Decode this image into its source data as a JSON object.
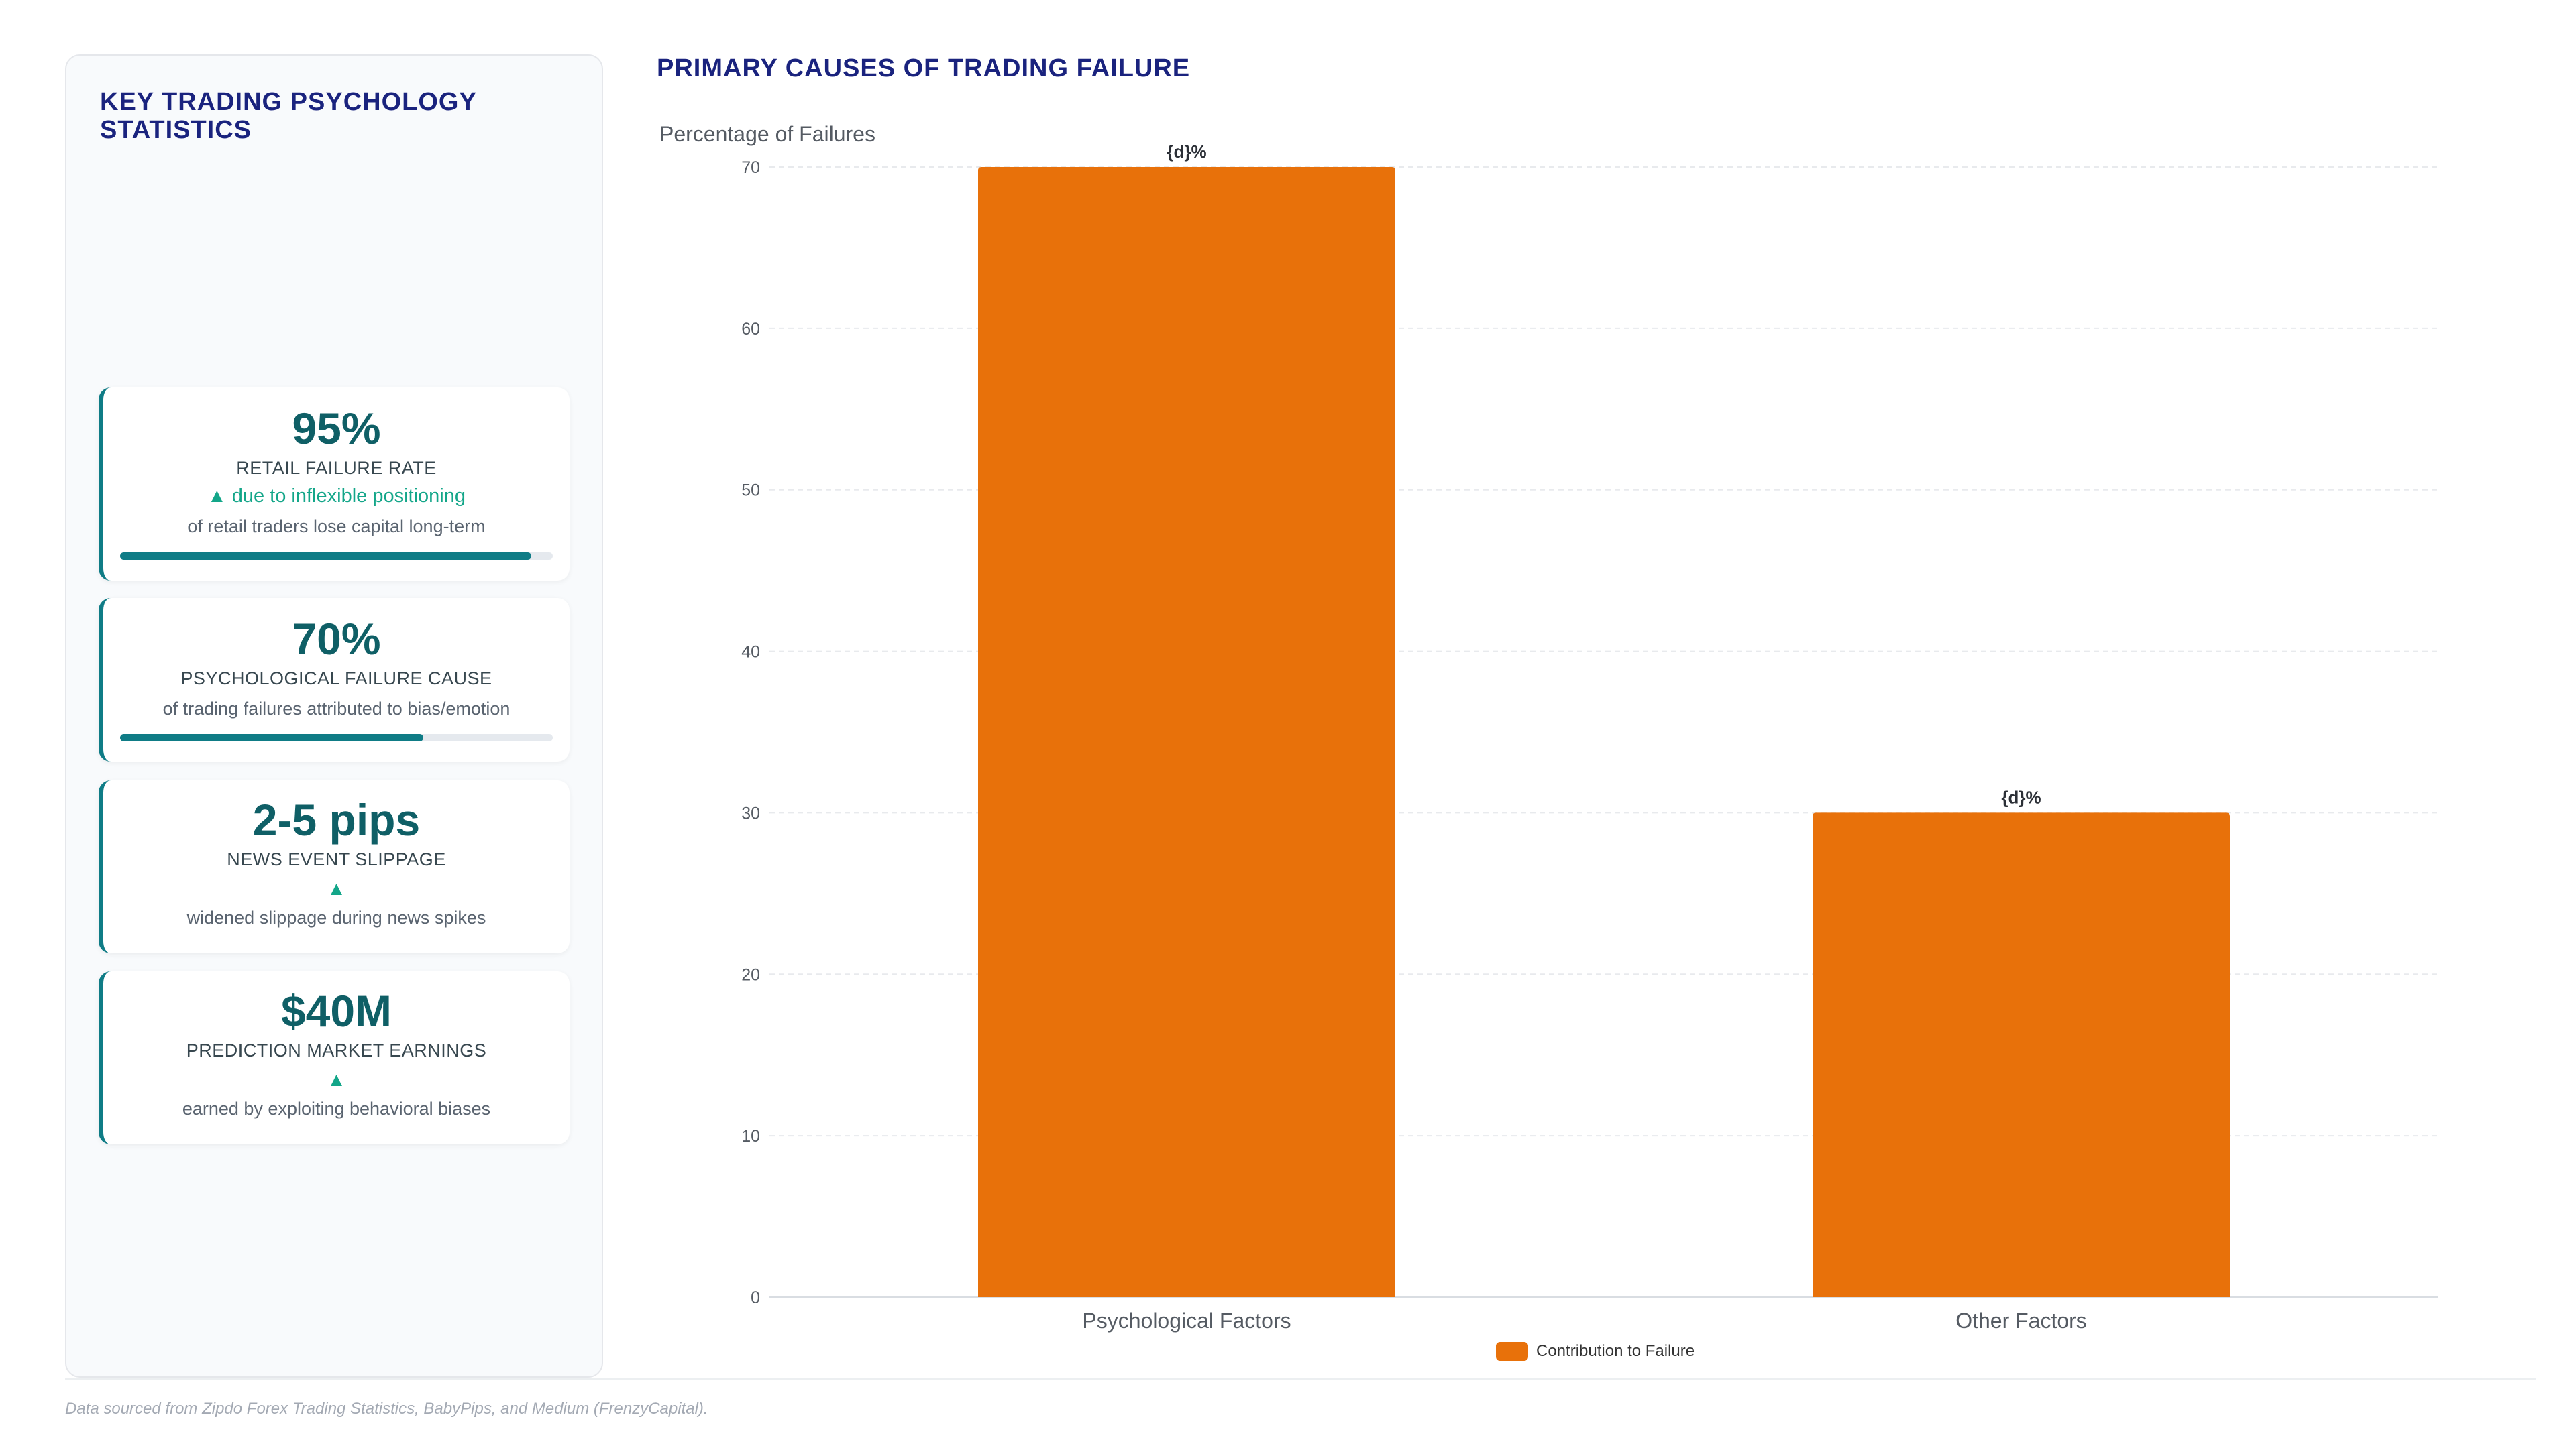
{
  "sidebar": {
    "title": "KEY TRADING PSYCHOLOGY STATISTICS",
    "stats": [
      {
        "value": "95%",
        "label": "RETAIL FAILURE RATE",
        "trend": "▲ due to inflexible positioning",
        "desc": "of retail traders lose capital long-term",
        "bar": 0.95
      },
      {
        "value": "70%",
        "label": "PSYCHOLOGICAL FAILURE CAUSE",
        "trend": "",
        "desc": "of trading failures attributed to bias/emotion",
        "bar": 0.7
      },
      {
        "value": "2-5 pips",
        "label": "NEWS EVENT SLIPPAGE",
        "trend": "▲",
        "desc": "widened slippage during news spikes"
      },
      {
        "value": "$40M",
        "label": "PREDICTION MARKET EARNINGS",
        "trend": "▲",
        "desc": "earned by exploiting behavioral biases"
      }
    ]
  },
  "colors": {
    "bar": "#e8710a",
    "accent": "#0f7c86",
    "title": "#1a237e",
    "trend": "#13a689"
  },
  "chart_data": {
    "type": "bar",
    "title": "PRIMARY CAUSES OF TRADING FAILURE",
    "xlabel": "",
    "ylabel": "Percentage of Failures",
    "categories": [
      "Psychological Factors",
      "Other Factors"
    ],
    "series": [
      {
        "name": "Contribution to Failure",
        "values": [
          70,
          30
        ]
      }
    ],
    "data_labels": [
      "{d}%",
      "{d}%"
    ],
    "ylim": [
      0,
      70
    ],
    "yticks": [
      "0",
      "10",
      "20",
      "30",
      "40",
      "50",
      "60",
      "70"
    ],
    "grid": true,
    "legend_position": "bottom"
  },
  "footer": {
    "source": "Data sourced from Zipdo Forex Trading Statistics, BabyPips, and Medium (FrenzyCapital)."
  }
}
